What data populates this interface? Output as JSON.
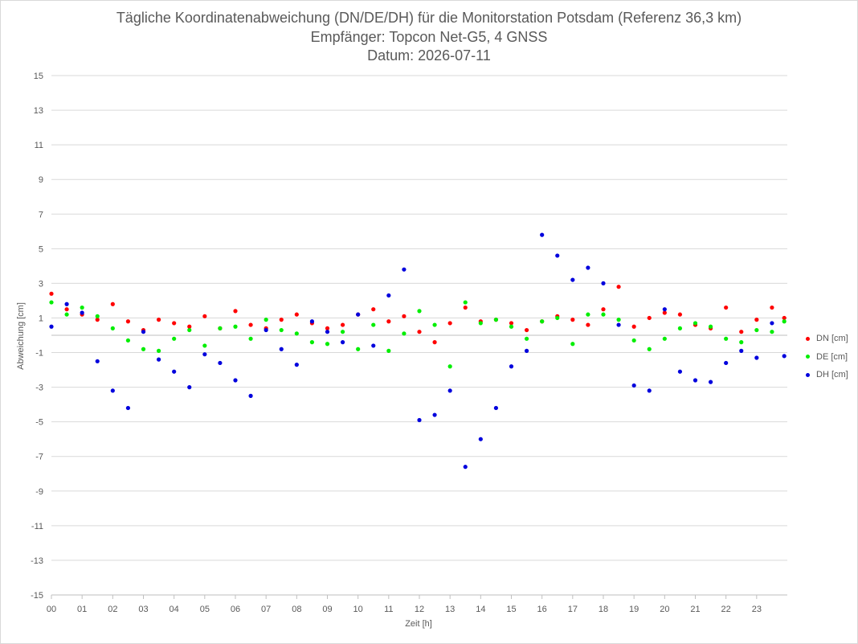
{
  "chart_data": {
    "type": "scatter",
    "title": "Tägliche Koordinatenabweichung (DN/DE/DH) für die Monitorstation Potsdam (Referenz 36,3 km)",
    "subtitle_1": "Empfänger: Topcon Net-G5, 4 GNSS",
    "subtitle_2": "Datum: 2026-07-11",
    "xlabel": "Zeit [h]",
    "ylabel": "Abweichung [cm]",
    "xlim": [
      0,
      24
    ],
    "ylim": [
      -15,
      15
    ],
    "xticks": [
      "00",
      "01",
      "02",
      "03",
      "04",
      "05",
      "06",
      "07",
      "08",
      "09",
      "10",
      "11",
      "12",
      "13",
      "14",
      "15",
      "16",
      "17",
      "18",
      "19",
      "20",
      "21",
      "22",
      "23"
    ],
    "yticks": [
      "15",
      "13",
      "11",
      "9",
      "7",
      "5",
      "3",
      "1",
      "-1",
      "-3",
      "-5",
      "-7",
      "-9",
      "-11",
      "-13",
      "-15"
    ],
    "grid": "horizontal",
    "legend_position": "right",
    "series": [
      {
        "name": "DN [cm]",
        "color": "#ff0000",
        "x": [
          0,
          0.5,
          1,
          1.5,
          2,
          2.5,
          3,
          3.5,
          4,
          4.5,
          5,
          5.5,
          6,
          6.5,
          7,
          7.5,
          8,
          8.5,
          9,
          9.5,
          10,
          10.5,
          11,
          11.5,
          12,
          12.5,
          13,
          13.5,
          14,
          14.5,
          15,
          15.5,
          16,
          16.5,
          17,
          17.5,
          18,
          18.5,
          19,
          19.5,
          20,
          20.5,
          21,
          21.5,
          22,
          22.5,
          23,
          23.5,
          23.9
        ],
        "y": [
          2.4,
          1.5,
          1.2,
          0.9,
          1.8,
          0.8,
          0.3,
          0.9,
          0.7,
          0.5,
          1.1,
          0.4,
          1.4,
          0.6,
          0.4,
          0.9,
          1.2,
          0.7,
          0.4,
          0.6,
          1.2,
          1.5,
          0.8,
          1.1,
          0.2,
          -0.4,
          0.7,
          1.6,
          0.8,
          0.9,
          0.7,
          0.3,
          0.8,
          1.1,
          0.9,
          0.6,
          1.5,
          2.8,
          0.5,
          1.0,
          1.3,
          1.2,
          0.6,
          0.4,
          1.6,
          0.2,
          0.9,
          1.6,
          1.0
        ]
      },
      {
        "name": "DE [cm]",
        "color": "#00ee00",
        "x": [
          0,
          0.5,
          1,
          1.5,
          2,
          2.5,
          3,
          3.5,
          4,
          4.5,
          5,
          5.5,
          6,
          6.5,
          7,
          7.5,
          8,
          8.5,
          9,
          9.5,
          10,
          10.5,
          11,
          11.5,
          12,
          12.5,
          13,
          13.5,
          14,
          14.5,
          15,
          15.5,
          16,
          16.5,
          17,
          17.5,
          18,
          18.5,
          19,
          19.5,
          20,
          20.5,
          21,
          21.5,
          22,
          22.5,
          23,
          23.5,
          23.9
        ],
        "y": [
          1.9,
          1.2,
          1.6,
          1.1,
          0.4,
          -0.3,
          -0.8,
          -0.9,
          -0.2,
          0.3,
          -0.6,
          0.4,
          0.5,
          -0.2,
          0.9,
          0.3,
          0.1,
          -0.4,
          -0.5,
          0.2,
          -0.8,
          0.6,
          -0.9,
          0.1,
          1.4,
          0.6,
          -1.8,
          1.9,
          0.7,
          0.9,
          0.5,
          -0.2,
          0.8,
          1.0,
          -0.5,
          1.2,
          1.2,
          0.9,
          -0.3,
          -0.8,
          -0.2,
          0.4,
          0.7,
          0.5,
          -0.2,
          -0.4,
          0.3,
          0.2,
          0.8
        ]
      },
      {
        "name": "DH [cm]",
        "color": "#0000dd",
        "x": [
          0,
          0.5,
          1,
          1.5,
          2,
          2.5,
          3,
          3.5,
          4,
          4.5,
          5,
          5.5,
          6,
          6.5,
          7,
          7.5,
          8,
          8.5,
          9,
          9.5,
          10,
          10.5,
          11,
          11.5,
          12,
          12.5,
          13,
          13.5,
          14,
          14.5,
          15,
          15.5,
          16,
          16.5,
          17,
          17.5,
          18,
          18.5,
          19,
          19.5,
          20,
          20.5,
          21,
          21.5,
          22,
          22.5,
          23,
          23.5,
          23.9
        ],
        "y": [
          0.5,
          1.8,
          1.3,
          -1.5,
          -3.2,
          -4.2,
          0.2,
          -1.4,
          -2.1,
          -3.0,
          -1.1,
          -1.6,
          -2.6,
          -3.5,
          0.3,
          -0.8,
          -1.7,
          0.8,
          0.2,
          -0.4,
          1.2,
          -0.6,
          2.3,
          3.8,
          -4.9,
          -4.6,
          -3.2,
          -7.6,
          -6.0,
          -4.2,
          -1.8,
          -0.9,
          5.8,
          4.6,
          3.2,
          3.9,
          3.0,
          0.6,
          -2.9,
          -3.2,
          1.5,
          -2.1,
          -2.6,
          -2.7,
          -1.6,
          -0.9,
          -1.3,
          0.7,
          -1.2
        ]
      }
    ]
  }
}
